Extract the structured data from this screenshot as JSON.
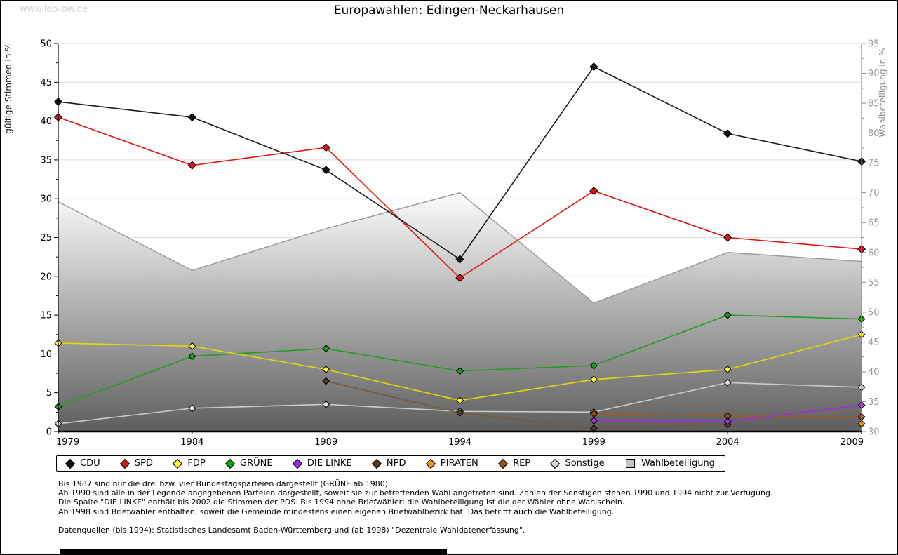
{
  "watermark": "www.leo-bw.de",
  "title": "Europawahlen: Edingen-Neckarhausen",
  "chart_data": {
    "type": "line",
    "categories": [
      "1979",
      "1984",
      "1989",
      "1994",
      "1999",
      "2004",
      "2009"
    ],
    "left_axis": {
      "title": "gültige Stimmen in %",
      "range": [
        0,
        50
      ],
      "tick_step": 5,
      "ticks": [
        0,
        5,
        10,
        15,
        20,
        25,
        30,
        35,
        40,
        45,
        50
      ]
    },
    "right_axis": {
      "title": "Wahlbeteiligung in %",
      "range": [
        30,
        95
      ],
      "tick_step": 5,
      "ticks": [
        30,
        35,
        40,
        45,
        50,
        55,
        60,
        65,
        70,
        75,
        80,
        85,
        90,
        95
      ]
    },
    "grid": "horizontal",
    "legend_position": "bottom",
    "series": [
      {
        "name": "CDU",
        "axis": "left",
        "shape": "diamond",
        "line_color": "#1a1a1a",
        "marker_fill": "#111111",
        "values": [
          42.5,
          40.5,
          33.7,
          22.2,
          47.0,
          38.4,
          34.8
        ]
      },
      {
        "name": "SPD",
        "axis": "left",
        "shape": "diamond",
        "line_color": "#e11414",
        "marker_fill": "#dd1111",
        "values": [
          40.5,
          34.3,
          36.6,
          19.8,
          31.0,
          25.0,
          23.5
        ]
      },
      {
        "name": "FDP",
        "axis": "left",
        "shape": "diamond",
        "line_color": "#e6da00",
        "marker_fill": "#ffff2a",
        "values": [
          11.4,
          11.0,
          8.0,
          4.0,
          6.7,
          8.0,
          12.5
        ]
      },
      {
        "name": "GRÜNE",
        "axis": "left",
        "shape": "diamond",
        "line_color": "#1f9e1f",
        "marker_fill": "#0fa30f",
        "values": [
          3.2,
          9.7,
          10.7,
          7.8,
          8.5,
          15.0,
          14.5
        ]
      },
      {
        "name": "DIE LINKE",
        "axis": "left",
        "shape": "diamond",
        "line_color": "#a227dd",
        "marker_fill": "#a62ae0",
        "values": [
          null,
          null,
          null,
          null,
          1.4,
          1.3,
          3.4
        ]
      },
      {
        "name": "NPD",
        "axis": "left",
        "shape": "diamond",
        "line_color": "#77573c",
        "marker_fill": "#553a22",
        "values": [
          null,
          null,
          6.5,
          2.4,
          0.4,
          0.9,
          null
        ]
      },
      {
        "name": "PIRATEN",
        "axis": "left",
        "shape": "diamond",
        "line_color": "#f28a1d",
        "marker_fill": "#f79420",
        "values": [
          null,
          null,
          null,
          null,
          null,
          null,
          1.0
        ]
      },
      {
        "name": "REP",
        "axis": "left",
        "shape": "diamond",
        "line_color": "#a55a1e",
        "marker_fill": "#9c4f1d",
        "values": [
          null,
          null,
          null,
          null,
          2.3,
          2.0,
          1.9
        ]
      },
      {
        "name": "Sonstige",
        "axis": "left",
        "shape": "diamond",
        "line_color": "#cccccc",
        "marker_fill": "#dedede",
        "values": [
          1.0,
          3.0,
          3.5,
          2.6,
          2.5,
          6.3,
          5.7
        ]
      },
      {
        "name": "Wahlbeteiligung",
        "axis": "right",
        "shape": "square",
        "type": "area",
        "line_color": "#999999",
        "area_gradient": [
          "#fcfcfc",
          "#5e5e5e"
        ],
        "values": [
          68.5,
          57.0,
          64.0,
          70.0,
          51.5,
          60.0,
          58.5
        ]
      }
    ]
  },
  "notes": [
    "Bis 1987 sind nur die drei bzw. vier Bundestagsparteien dargestellt (GRÜNE ab 1980).",
    "Ab 1990 sind alle in der Legende angegebenen Parteien dargestellt, soweit sie zur betreffenden Wahl angetreten sind. Zahlen der Sonstigen stehen 1990 und 1994 nicht zur Verfügung.",
    "Die Spalte \"DIE LINKE\" enthält bis 2002 die Stimmen der PDS. Bis 1994 ohne Briefwähler; die Wahlbeteiligung ist die der Wähler ohne Wahlschein.",
    "Ab 1998 sind Briefwähler enthalten, soweit die Gemeinde mindestens einen eigenen Briefwahlbezirk hat. Das betrifft auch die Wahlbeteiligung."
  ],
  "source": "Datenquellen (bis 1994): Statistisches Landesamt Baden-Württemberg und (ab 1998) \"Dezentrale Wahldatenerfassung\"."
}
